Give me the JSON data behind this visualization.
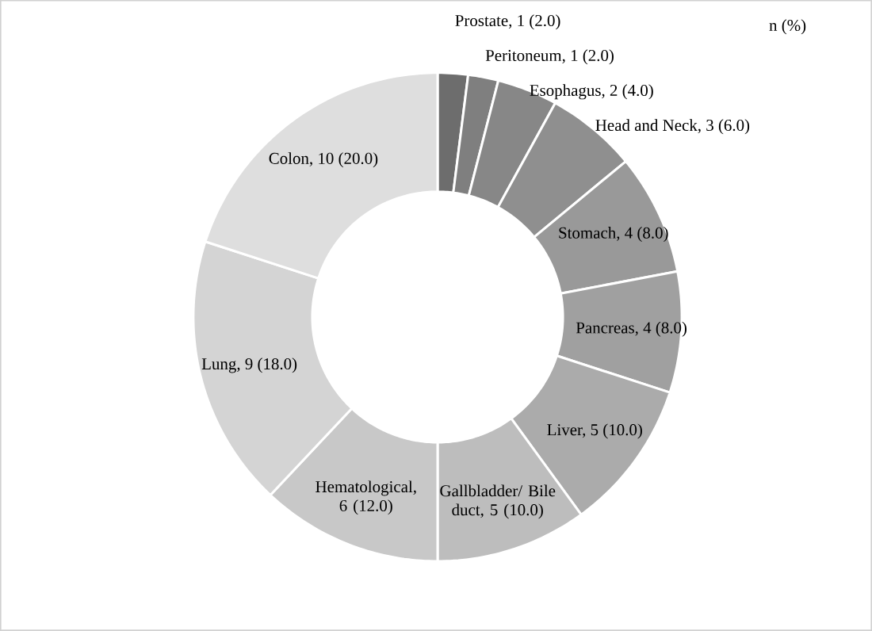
{
  "chart_data": {
    "type": "donut",
    "categories": [
      "Prostate, 1 (2.0)",
      "Peritoneum, 1 (2.0)",
      "Esophagus, 2 (4.0)",
      "Head and Neck, 3 (6.0)",
      "Stomach, 4 (8.0)",
      "Pancreas, 4 (8.0)",
      "Liver, 5 (10.0)",
      "Gallbladder/ Bile duct, 5 (10.0)",
      "Hematological, 6 (12.0)",
      "Lung, 9 (18.0)",
      "Colon, 10 (20.0)"
    ],
    "values": [
      1,
      1,
      2,
      3,
      4,
      4,
      5,
      5,
      6,
      9,
      10
    ],
    "colors": [
      "#6d6d6d",
      "#7f7f7f",
      "#878787",
      "#8f8f8f",
      "#999999",
      "#a0a0a0",
      "#ababab",
      "#bdbdbd",
      "#c8c8c8",
      "#d4d4d4",
      "#dedede"
    ],
    "annotations": [
      "n (%)"
    ]
  }
}
